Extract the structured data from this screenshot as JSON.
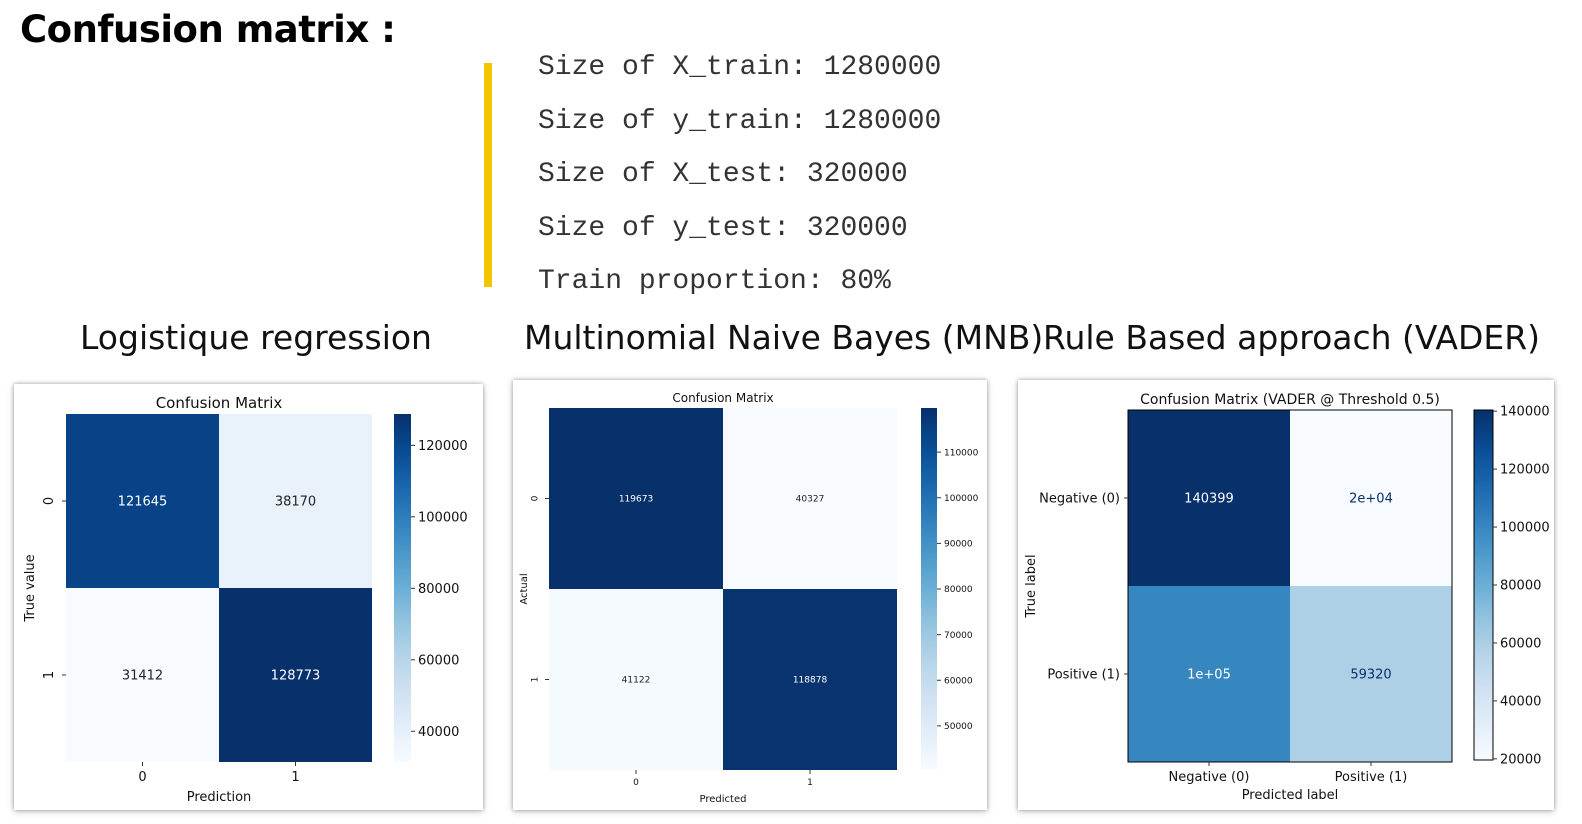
{
  "page": {
    "title": "Confusion matrix :",
    "code_lines": [
      "Size of X_train: 1280000",
      "Size of y_train: 1280000",
      "Size of X_test: 320000",
      "Size of y_test: 320000",
      "Train proportion: 80%"
    ],
    "accent_color": "#f2c500",
    "sections": [
      {
        "title": "Logistique regression"
      },
      {
        "title": "Multinomial Naive Bayes (MNB)"
      },
      {
        "title": "Rule Based approach (VADER)"
      }
    ]
  },
  "chart_data": [
    {
      "type": "heatmap",
      "title": "Confusion Matrix",
      "xlabel": "Prediction",
      "ylabel": "True value",
      "x_categories": [
        "0",
        "1"
      ],
      "y_categories": [
        "0",
        "1"
      ],
      "values": [
        [
          121645,
          38170
        ],
        [
          31412,
          128773
        ]
      ],
      "cell_labels": [
        [
          "121645",
          "38170"
        ],
        [
          "31412",
          "128773"
        ]
      ],
      "colormap": "Blues",
      "vmin": 31412,
      "vmax": 128773,
      "colorbar_ticks": [
        40000,
        60000,
        80000,
        100000,
        120000
      ],
      "colorbar_labels": [
        "40000",
        "60000",
        "80000",
        "100000",
        "120000"
      ]
    },
    {
      "type": "heatmap",
      "title": "Confusion Matrix",
      "xlabel": "Predicted",
      "ylabel": "Actual",
      "x_categories": [
        "0",
        "1"
      ],
      "y_categories": [
        "0",
        "1"
      ],
      "values": [
        [
          119673,
          40327
        ],
        [
          41122,
          118878
        ]
      ],
      "cell_labels": [
        [
          "119673",
          "40327"
        ],
        [
          "41122",
          "118878"
        ]
      ],
      "colormap": "Blues",
      "vmin": 40327,
      "vmax": 119673,
      "colorbar_ticks": [
        50000,
        60000,
        70000,
        80000,
        90000,
        100000,
        110000
      ],
      "colorbar_labels": [
        "50000",
        "60000",
        "70000",
        "80000",
        "90000",
        "100000",
        "110000"
      ]
    },
    {
      "type": "heatmap",
      "title": "Confusion Matrix (VADER @ Threshold 0.5)",
      "xlabel": "Predicted label",
      "ylabel": "True label",
      "x_categories": [
        "Negative (0)",
        "Positive (1)"
      ],
      "y_categories": [
        "Negative (0)",
        "Positive (1)"
      ],
      "values": [
        [
          140399,
          19601
        ],
        [
          100680,
          59320
        ]
      ],
      "cell_labels": [
        [
          "140399",
          "2e+04"
        ],
        [
          "1e+05",
          "59320"
        ]
      ],
      "colormap": "Blues",
      "vmin": 19601,
      "vmax": 140399,
      "colorbar_ticks": [
        20000,
        40000,
        60000,
        80000,
        100000,
        120000,
        140000
      ],
      "colorbar_labels": [
        "20000",
        "40000",
        "60000",
        "80000",
        "100000",
        "120000",
        "140000"
      ]
    }
  ]
}
